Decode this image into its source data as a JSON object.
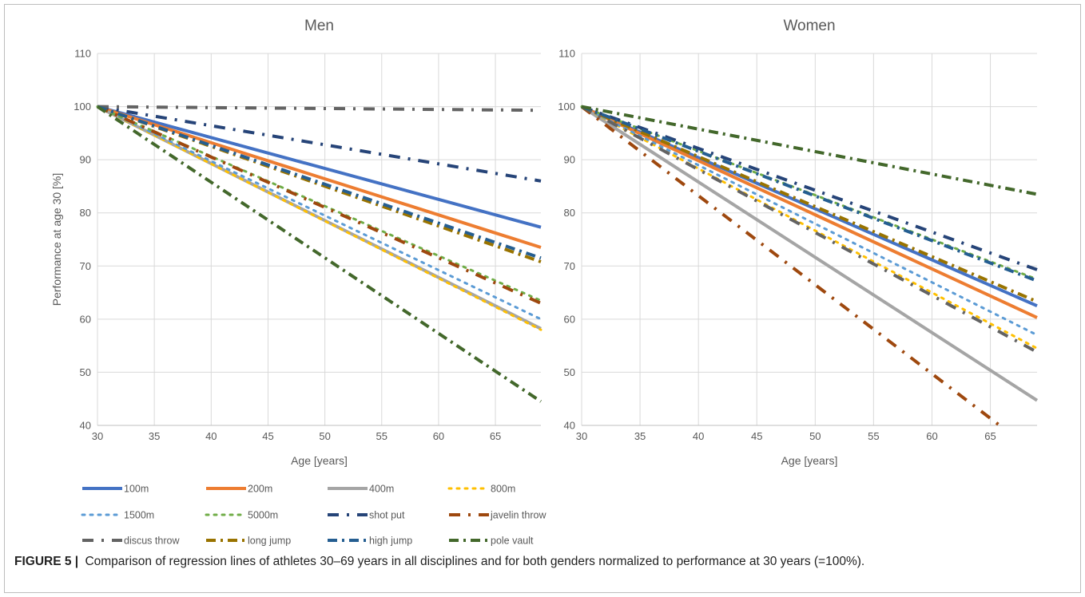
{
  "caption": {
    "label": "FIGURE 5 |",
    "text": "Comparison of regression lines of athletes 30–69 years in all disciplines and for both genders normalized to performance at 30 years (=100%)."
  },
  "series_styles": [
    {
      "name": "100m",
      "color": "#4472c4",
      "style": "solid"
    },
    {
      "name": "200m",
      "color": "#ed7d31",
      "style": "solid"
    },
    {
      "name": "400m",
      "color": "#a5a5a5",
      "style": "solid"
    },
    {
      "name": "800m",
      "color": "#ffc000",
      "style": "dot"
    },
    {
      "name": "1500m",
      "color": "#5b9bd5",
      "style": "dot"
    },
    {
      "name": "5000m",
      "color": "#70ad47",
      "style": "dot"
    },
    {
      "name": "shot put",
      "color": "#264478",
      "style": "dashdot"
    },
    {
      "name": "javelin throw",
      "color": "#9e480e",
      "style": "dashdot"
    },
    {
      "name": "discus throw",
      "color": "#636363",
      "style": "dashdot"
    },
    {
      "name": "long jump",
      "color": "#997300",
      "style": "dashdot2"
    },
    {
      "name": "high jump",
      "color": "#255e91",
      "style": "dashdot2"
    },
    {
      "name": "pole vault",
      "color": "#43682b",
      "style": "dashdot2"
    }
  ],
  "chart_data": [
    {
      "type": "line",
      "title": "Men",
      "xlabel": "Age [years]",
      "ylabel": "Performance at age 30 [%]",
      "xlim": [
        30,
        69
      ],
      "ylim": [
        40,
        110
      ],
      "xticks": [
        30,
        35,
        40,
        45,
        50,
        55,
        60,
        65
      ],
      "yticks": [
        40,
        50,
        60,
        70,
        80,
        90,
        100,
        110
      ],
      "grid": true,
      "series": [
        {
          "name": "100m",
          "x": [
            30,
            69
          ],
          "y": [
            100,
            77.3
          ]
        },
        {
          "name": "200m",
          "x": [
            30,
            69
          ],
          "y": [
            100,
            73.5
          ]
        },
        {
          "name": "400m",
          "x": [
            30,
            69
          ],
          "y": [
            100,
            58.2
          ]
        },
        {
          "name": "800m",
          "x": [
            30,
            69
          ],
          "y": [
            100,
            58.0
          ]
        },
        {
          "name": "1500m",
          "x": [
            30,
            69
          ],
          "y": [
            100,
            60.0
          ]
        },
        {
          "name": "5000m",
          "x": [
            30,
            69
          ],
          "y": [
            100,
            63.5
          ]
        },
        {
          "name": "shot put",
          "x": [
            30,
            69
          ],
          "y": [
            100,
            86.0
          ]
        },
        {
          "name": "javelin throw",
          "x": [
            30,
            69
          ],
          "y": [
            100,
            63.0
          ]
        },
        {
          "name": "discus throw",
          "x": [
            30,
            69
          ],
          "y": [
            100,
            99.3
          ]
        },
        {
          "name": "long jump",
          "x": [
            30,
            69
          ],
          "y": [
            100,
            70.8
          ]
        },
        {
          "name": "high jump",
          "x": [
            30,
            69
          ],
          "y": [
            100,
            71.5
          ]
        },
        {
          "name": "pole vault",
          "x": [
            30,
            69
          ],
          "y": [
            100,
            44.5
          ]
        }
      ]
    },
    {
      "type": "line",
      "title": "Women",
      "xlabel": "Age [years]",
      "ylabel": "",
      "xlim": [
        30,
        69
      ],
      "ylim": [
        40,
        110
      ],
      "xticks": [
        30,
        35,
        40,
        45,
        50,
        55,
        60,
        65
      ],
      "yticks": [
        40,
        50,
        60,
        70,
        80,
        90,
        100,
        110
      ],
      "grid": true,
      "series": [
        {
          "name": "100m",
          "x": [
            30,
            69
          ],
          "y": [
            100,
            62.5
          ]
        },
        {
          "name": "200m",
          "x": [
            30,
            69
          ],
          "y": [
            100,
            60.3
          ]
        },
        {
          "name": "400m",
          "x": [
            30,
            69
          ],
          "y": [
            100,
            44.7
          ]
        },
        {
          "name": "800m",
          "x": [
            30,
            69
          ],
          "y": [
            100,
            54.5
          ]
        },
        {
          "name": "1500m",
          "x": [
            30,
            69
          ],
          "y": [
            100,
            57.0
          ]
        },
        {
          "name": "5000m",
          "x": [
            30,
            69
          ],
          "y": [
            100,
            67.5
          ]
        },
        {
          "name": "shot put",
          "x": [
            30,
            69
          ],
          "y": [
            100,
            69.3
          ]
        },
        {
          "name": "javelin throw",
          "x": [
            30,
            65.8
          ],
          "y": [
            100,
            40.0
          ]
        },
        {
          "name": "discus throw",
          "x": [
            30,
            69
          ],
          "y": [
            100,
            53.8
          ]
        },
        {
          "name": "long jump",
          "x": [
            30,
            69
          ],
          "y": [
            100,
            63.3
          ]
        },
        {
          "name": "high jump",
          "x": [
            30,
            69
          ],
          "y": [
            100,
            67.2
          ]
        },
        {
          "name": "pole vault",
          "x": [
            30,
            69
          ],
          "y": [
            100,
            83.5
          ]
        }
      ]
    }
  ]
}
